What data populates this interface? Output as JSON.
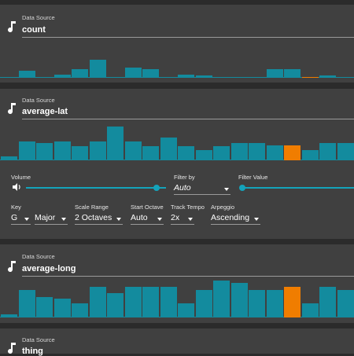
{
  "colors": {
    "bar": "#138b9e",
    "highlight": "#f07d00",
    "accent": "#14a3bb",
    "panel": "#404040",
    "background": "#2b2b2b"
  },
  "panels": [
    {
      "source_label": "Data Source",
      "source_value": "count",
      "icon": "music-note-icon",
      "bar_levels": [
        0,
        0.26,
        0,
        0.13,
        0.34,
        0.7,
        0,
        0.39,
        0.34,
        0,
        0.13,
        0.09,
        0,
        0.04,
        0.04,
        0.34,
        0.34,
        0.04,
        0.09,
        0.04
      ],
      "highlight_index": 17
    },
    {
      "source_label": "Data Source",
      "source_value": "average-lat",
      "icon": "music-note-icon",
      "bar_levels": [
        0.11,
        0.55,
        0.51,
        0.55,
        0.41,
        0.55,
        0.98,
        0.55,
        0.42,
        0.67,
        0.41,
        0.3,
        0.41,
        0.51,
        0.51,
        0.44,
        0.44,
        0.3,
        0.51,
        0.51
      ],
      "highlight_index": 16
    },
    {
      "source_label": "Data Source",
      "source_value": "average-long",
      "icon": "music-note-icon",
      "bar_levels": [
        0.08,
        0.75,
        0.55,
        0.51,
        0.39,
        0.84,
        0.65,
        0.84,
        0.84,
        0.84,
        0.39,
        0.75,
        1.0,
        0.94,
        0.75,
        0.75,
        0.84,
        0.39,
        0.84,
        0.75
      ],
      "highlight_index": 16
    },
    {
      "source_label": "Data Source",
      "source_value": "thing",
      "icon": "music-note-icon"
    }
  ],
  "controls": {
    "volume_label": "Volume",
    "volume_level": 0.93,
    "filter_by_label": "Filter by",
    "filter_by_value": "Auto",
    "filter_value_label": "Filter Value",
    "filter_value_level": 0.0,
    "key_label": "Key",
    "key_note": "G",
    "key_mode": "Major",
    "scale_range_label": "Scale Range",
    "scale_range_value": "2 Octaves",
    "start_octave_label": "Start Octave",
    "start_octave_value": "Auto",
    "track_tempo_label": "Track Tempo",
    "track_tempo_value": "2x",
    "arpeggio_label": "Arpeggio",
    "arpeggio_value": "Ascending"
  }
}
